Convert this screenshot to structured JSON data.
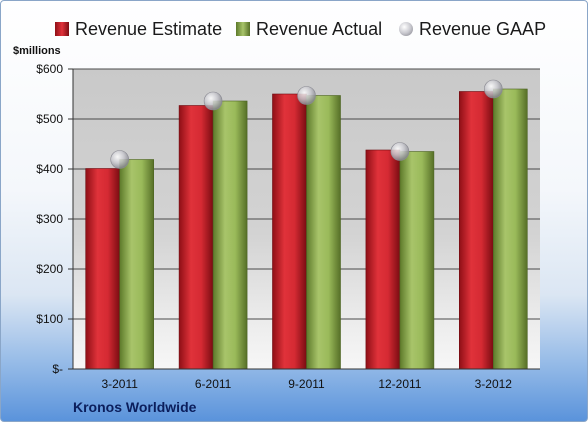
{
  "chart_data": {
    "type": "bar",
    "title": "",
    "unit_label": "$millions",
    "xlabel": "",
    "ylabel": "",
    "categories": [
      "3-2011",
      "6-2011",
      "9-2011",
      "12-2011",
      "3-2012"
    ],
    "series": [
      {
        "name": "Revenue Estimate",
        "type": "bar",
        "color": "#c8202a",
        "values": [
          401,
          527,
          550,
          438,
          555
        ]
      },
      {
        "name": "Revenue Actual",
        "type": "bar",
        "color": "#8aaa4a",
        "values": [
          419,
          536,
          547,
          435,
          560
        ]
      },
      {
        "name": "Revenue GAAP",
        "type": "marker",
        "color": "#b9b9bf",
        "values": [
          419,
          536,
          547,
          435,
          560
        ]
      }
    ],
    "ylim": [
      0,
      600
    ],
    "yticks": [
      {
        "value": 0,
        "label": "$-"
      },
      {
        "value": 100,
        "label": "$100"
      },
      {
        "value": 200,
        "label": "$200"
      },
      {
        "value": 300,
        "label": "$300"
      },
      {
        "value": 400,
        "label": "$400"
      },
      {
        "value": 500,
        "label": "$500"
      },
      {
        "value": 600,
        "label": "$600"
      }
    ],
    "grid": true,
    "legend": "top"
  },
  "company": "Kronos Worldwide"
}
